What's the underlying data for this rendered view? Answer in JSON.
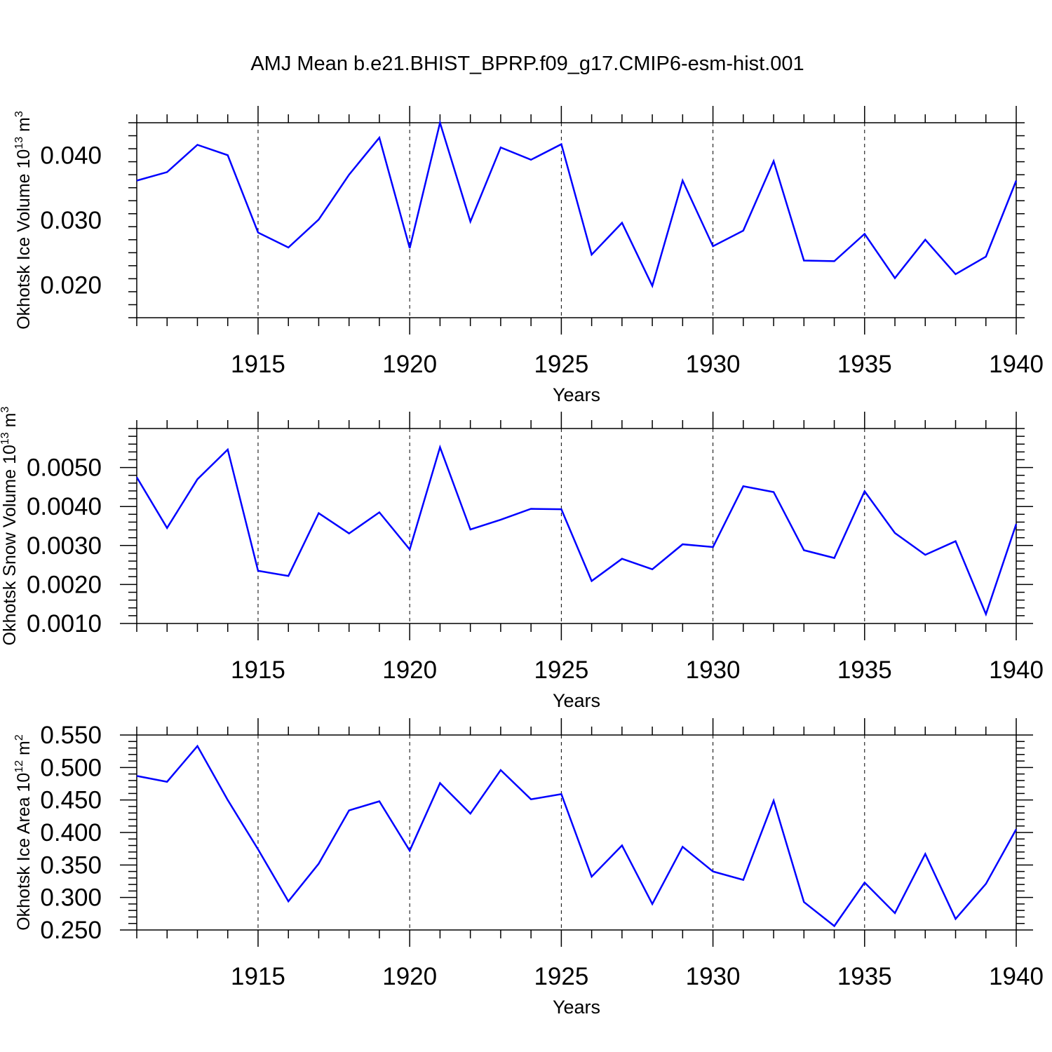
{
  "figure": {
    "title": "AMJ Mean b.e21.BHIST_BPRP.f09_g17.CMIP6-esm-hist.001"
  },
  "chart_data": [
    {
      "type": "line",
      "xlabel": "Years",
      "ylabel": "Okhotsk Ice Volume 10",
      "ylabel_exponent": "13",
      "ylabel_unit": " m",
      "ylabel_unit_exponent": "3",
      "xlim": [
        1911,
        1940
      ],
      "ylim": [
        0.015,
        0.045
      ],
      "yticks": [
        0.02,
        0.03,
        0.04
      ],
      "ytick_labels": [
        "0.020",
        "0.030",
        "0.040"
      ],
      "xticks": [
        1915,
        1920,
        1925,
        1930,
        1935,
        1940
      ],
      "xtick_labels": [
        "1915",
        "1920",
        "1925",
        "1930",
        "1935",
        "1940"
      ],
      "grid_x": true,
      "color": "#0000ff",
      "x": [
        1911,
        1912,
        1913,
        1914,
        1915,
        1916,
        1917,
        1918,
        1919,
        1920,
        1921,
        1922,
        1923,
        1924,
        1925,
        1926,
        1927,
        1928,
        1929,
        1930,
        1931,
        1932,
        1933,
        1934,
        1935,
        1936,
        1937,
        1938,
        1939,
        1940
      ],
      "values": [
        0.0361,
        0.0374,
        0.0416,
        0.04,
        0.0281,
        0.0258,
        0.0301,
        0.037,
        0.0427,
        0.0257,
        0.045,
        0.0298,
        0.0412,
        0.0393,
        0.0417,
        0.0247,
        0.0296,
        0.0199,
        0.0361,
        0.026,
        0.0284,
        0.0391,
        0.0238,
        0.0237,
        0.0279,
        0.0211,
        0.027,
        0.0217,
        0.0244,
        0.0361
      ]
    },
    {
      "type": "line",
      "xlabel": "Years",
      "ylabel": "Okhotsk Snow Volume 10",
      "ylabel_exponent": "13",
      "ylabel_unit": " m",
      "ylabel_unit_exponent": "3",
      "xlim": [
        1911,
        1940
      ],
      "ylim": [
        0.001,
        0.006
      ],
      "yticks": [
        0.001,
        0.002,
        0.003,
        0.004,
        0.005
      ],
      "ytick_labels": [
        "0.0010",
        "0.0020",
        "0.0030",
        "0.0040",
        "0.0050"
      ],
      "xticks": [
        1915,
        1920,
        1925,
        1930,
        1935,
        1940
      ],
      "xtick_labels": [
        "1915",
        "1920",
        "1925",
        "1930",
        "1935",
        "1940"
      ],
      "grid_x": true,
      "color": "#0000ff",
      "x": [
        1911,
        1912,
        1913,
        1914,
        1915,
        1916,
        1917,
        1918,
        1919,
        1920,
        1921,
        1922,
        1923,
        1924,
        1925,
        1926,
        1927,
        1928,
        1929,
        1930,
        1931,
        1932,
        1933,
        1934,
        1935,
        1936,
        1937,
        1938,
        1939,
        1940
      ],
      "values": [
        0.00475,
        0.00345,
        0.0047,
        0.00546,
        0.00235,
        0.00222,
        0.00383,
        0.00331,
        0.00385,
        0.0029,
        0.00552,
        0.00341,
        0.00366,
        0.00394,
        0.00393,
        0.00209,
        0.00266,
        0.00239,
        0.00303,
        0.00296,
        0.00452,
        0.00437,
        0.00288,
        0.00268,
        0.00439,
        0.00332,
        0.00276,
        0.00311,
        0.00124,
        0.00355
      ]
    },
    {
      "type": "line",
      "xlabel": "Years",
      "ylabel": "Okhotsk Ice Area 10",
      "ylabel_exponent": "12",
      "ylabel_unit": " m",
      "ylabel_unit_exponent": "2",
      "xlim": [
        1911,
        1940
      ],
      "ylim": [
        0.25,
        0.55
      ],
      "yticks": [
        0.25,
        0.3,
        0.35,
        0.4,
        0.45,
        0.5,
        0.55
      ],
      "ytick_labels": [
        "0.250",
        "0.300",
        "0.350",
        "0.400",
        "0.450",
        "0.500",
        "0.550"
      ],
      "xticks": [
        1915,
        1920,
        1925,
        1930,
        1935,
        1940
      ],
      "xtick_labels": [
        "1915",
        "1920",
        "1925",
        "1930",
        "1935",
        "1940"
      ],
      "grid_x": true,
      "color": "#0000ff",
      "x": [
        1911,
        1912,
        1913,
        1914,
        1915,
        1916,
        1917,
        1918,
        1919,
        1920,
        1921,
        1922,
        1923,
        1924,
        1925,
        1926,
        1927,
        1928,
        1929,
        1930,
        1931,
        1932,
        1933,
        1934,
        1935,
        1936,
        1937,
        1938,
        1939,
        1940
      ],
      "values": [
        0.487,
        0.478,
        0.533,
        0.45,
        0.374,
        0.294,
        0.352,
        0.434,
        0.448,
        0.372,
        0.476,
        0.429,
        0.496,
        0.451,
        0.459,
        0.332,
        0.38,
        0.29,
        0.378,
        0.34,
        0.327,
        0.449,
        0.293,
        0.256,
        0.323,
        0.276,
        0.367,
        0.267,
        0.321,
        0.405
      ]
    }
  ]
}
